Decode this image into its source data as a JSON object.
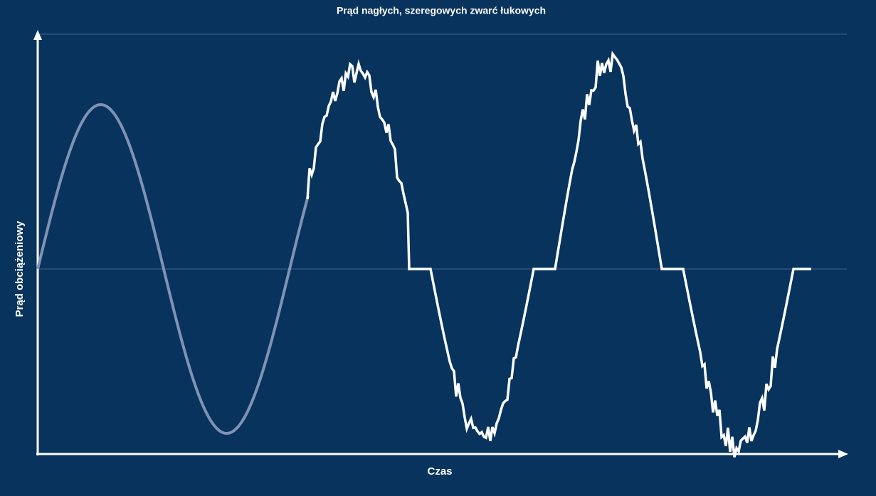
{
  "title": "Prąd nagłych, szeregowych zwarć łukowych",
  "x_axis_label": "Czas",
  "y_axis_label": "Prąd obciążeniowy"
}
